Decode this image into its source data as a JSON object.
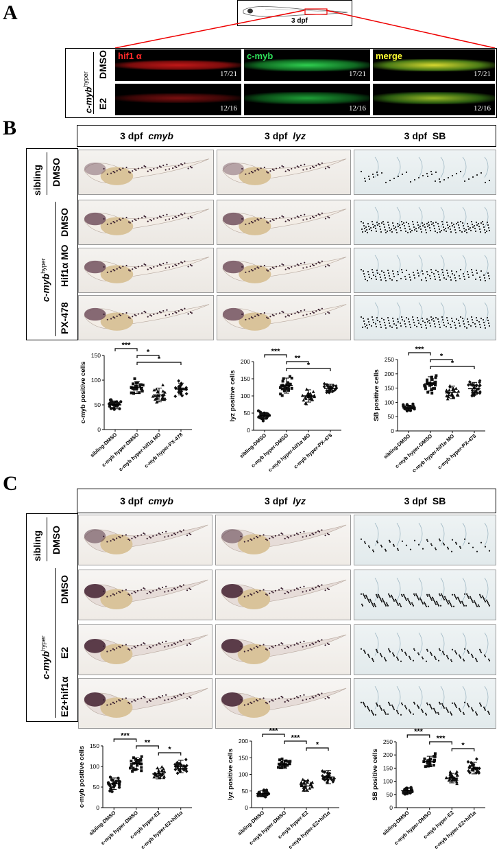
{
  "panel_a": {
    "letter": "A",
    "stage": "3 dpf",
    "genotype": "c-myb",
    "genotype_sup": "hyper",
    "rows": [
      {
        "label": "DMSO",
        "fractions": [
          "17/21",
          "17/21",
          "17/21"
        ]
      },
      {
        "label": "E2",
        "fractions": [
          "12/16",
          "12/16",
          "12/16"
        ]
      }
    ],
    "channels": [
      {
        "label": "hif1 α",
        "color": "#ff2a2a"
      },
      {
        "label": "c-myb",
        "color": "#2fe05a"
      },
      {
        "label": "merge",
        "color": "#ffff33"
      }
    ]
  },
  "panel_b": {
    "letter": "B",
    "headers": [
      {
        "prefix": "3 dpf",
        "gene": "cmyb"
      },
      {
        "prefix": "3 dpf",
        "gene": "lyz"
      },
      {
        "prefix": "3 dpf",
        "gene": "SB"
      }
    ],
    "group_sibling": "sibling",
    "group_hyper": "c-myb",
    "group_hyper_sup": "hyper",
    "rows": [
      "DMSO",
      "DMSO",
      "Hif1α MO",
      "PX-478"
    ]
  },
  "panel_c": {
    "letter": "C",
    "headers": [
      {
        "prefix": "3 dpf",
        "gene": "cmyb"
      },
      {
        "prefix": "3 dpf",
        "gene": "lyz"
      },
      {
        "prefix": "3 dpf",
        "gene": "SB"
      }
    ],
    "group_sibling": "sibling",
    "group_hyper": "c-myb",
    "group_hyper_sup": "hyper",
    "rows": [
      "DMSO",
      "DMSO",
      "E2",
      "E2+hif1α"
    ]
  },
  "chart_data": [
    {
      "type": "scatter",
      "ylabel": "c-myb positive cells",
      "ylim": [
        0,
        150
      ],
      "yticks": [
        0,
        50,
        100,
        150
      ],
      "categories": [
        "sibling-DMSO",
        "c-myb hyper-DMSO",
        "c-myb hyper-hif1α MO",
        "c-myb hyper-PX-478"
      ],
      "means": [
        50,
        85,
        70,
        82
      ],
      "sd": [
        8,
        12,
        14,
        12
      ],
      "significance": [
        {
          "from": 0,
          "to": 1,
          "label": "***"
        },
        {
          "from": 1,
          "to": 2,
          "label": "*"
        },
        {
          "from": 1,
          "to": 3,
          "label": "*"
        }
      ]
    },
    {
      "type": "scatter",
      "ylabel": "lyz positive cells",
      "ylim": [
        0,
        200
      ],
      "yticks": [
        0,
        50,
        100,
        150,
        200
      ],
      "categories": [
        "sibling-DMSO",
        "c-myb hyper-DMSO",
        "c-myb hyper-hif1α MO",
        "c-myb hyper-PX-478"
      ],
      "means": [
        42,
        130,
        100,
        122
      ],
      "sd": [
        10,
        22,
        18,
        12
      ],
      "significance": [
        {
          "from": 0,
          "to": 1,
          "label": "***"
        },
        {
          "from": 1,
          "to": 2,
          "label": "**"
        },
        {
          "from": 1,
          "to": 3,
          "label": "*"
        }
      ]
    },
    {
      "type": "scatter",
      "ylabel": "SB positive cells",
      "ylim": [
        0,
        250
      ],
      "yticks": [
        0,
        50,
        100,
        150,
        200,
        250
      ],
      "categories": [
        "sibling-DMSO",
        "c-myb hyper-DMSO",
        "c-myb hyper-hif1α MO",
        "c-myb hyper-PX-478"
      ],
      "means": [
        80,
        165,
        135,
        148
      ],
      "sd": [
        10,
        25,
        22,
        22
      ],
      "significance": [
        {
          "from": 0,
          "to": 1,
          "label": "***"
        },
        {
          "from": 1,
          "to": 2,
          "label": "*"
        },
        {
          "from": 1,
          "to": 3,
          "label": "*"
        }
      ]
    },
    {
      "type": "scatter",
      "ylabel": "c-myb positive cells",
      "ylim": [
        0,
        150
      ],
      "yticks": [
        0,
        50,
        100,
        150
      ],
      "categories": [
        "sibling-DMSO",
        "c-myb hyper-DMSO",
        "c-myb hyper-E2",
        "c-myb hyper-E2+hif1α"
      ],
      "means": [
        58,
        107,
        82,
        100
      ],
      "sd": [
        14,
        14,
        12,
        15
      ],
      "significance": [
        {
          "from": 0,
          "to": 1,
          "label": "***"
        },
        {
          "from": 1,
          "to": 2,
          "label": "**"
        },
        {
          "from": 2,
          "to": 3,
          "label": "*"
        }
      ]
    },
    {
      "type": "scatter",
      "ylabel": "lyz positive cells",
      "ylim": [
        0,
        200
      ],
      "yticks": [
        0,
        50,
        100,
        150,
        200
      ],
      "categories": [
        "sibling-DMSO",
        "c-myb hyper-DMSO",
        "c-myb hyper-E2",
        "c-myb hyper-E2+hif1α"
      ],
      "means": [
        42,
        130,
        65,
        92
      ],
      "sd": [
        9,
        12,
        16,
        20
      ],
      "significance": [
        {
          "from": 0,
          "to": 1,
          "label": "***"
        },
        {
          "from": 1,
          "to": 2,
          "label": "***"
        },
        {
          "from": 2,
          "to": 3,
          "label": "*"
        }
      ]
    },
    {
      "type": "scatter",
      "ylabel": "SB positive cells",
      "ylim": [
        0,
        250
      ],
      "yticks": [
        0,
        50,
        100,
        150,
        200,
        250
      ],
      "categories": [
        "sibling-DMSO",
        "c-myb hyper-DMSO",
        "c-myb hyper-E2",
        "c-myb hyper-E2+hif1α"
      ],
      "means": [
        65,
        175,
        112,
        150
      ],
      "sd": [
        10,
        20,
        18,
        22
      ],
      "significance": [
        {
          "from": 0,
          "to": 1,
          "label": "***"
        },
        {
          "from": 1,
          "to": 2,
          "label": "***"
        },
        {
          "from": 2,
          "to": 3,
          "label": "*"
        }
      ]
    }
  ]
}
